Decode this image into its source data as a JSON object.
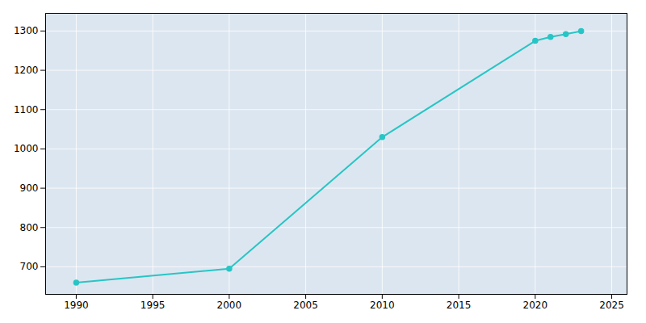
{
  "chart_data": {
    "type": "line",
    "x": [
      1990,
      2000,
      2010,
      2020,
      2021,
      2022,
      2023
    ],
    "values": [
      660,
      695,
      1030,
      1275,
      1285,
      1292,
      1300
    ],
    "color": "#28c5c5",
    "marker": "circle",
    "xlim": [
      1988,
      2026
    ],
    "ylim": [
      630,
      1345
    ],
    "xticks": [
      1990,
      1995,
      2000,
      2005,
      2010,
      2015,
      2020,
      2025
    ],
    "yticks": [
      700,
      800,
      900,
      1000,
      1100,
      1200,
      1300
    ],
    "grid": true
  }
}
